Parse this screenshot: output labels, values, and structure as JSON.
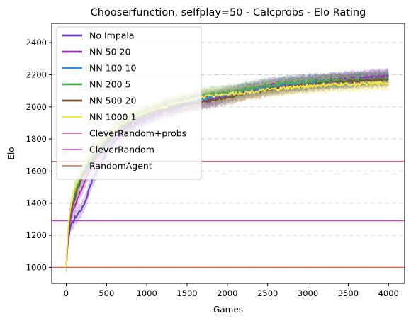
{
  "chart_data": {
    "type": "line",
    "title": "Chooserfunction, selfplay=50 - Calcprobs - Elo Rating",
    "xlabel": "Games",
    "ylabel": "Elo",
    "xlim": [
      -180,
      4200
    ],
    "ylim": [
      900,
      2520
    ],
    "xticks": [
      0,
      500,
      1000,
      1500,
      2000,
      2500,
      3000,
      3500,
      4000
    ],
    "yticks": [
      1000,
      1200,
      1400,
      1600,
      1800,
      2000,
      2200,
      2400
    ],
    "grid": "horizontal-dashed",
    "legend_position": "upper-left",
    "series": [
      {
        "name": "No Impala",
        "color": "#6a3fbf",
        "band": 45,
        "x": [
          0,
          20,
          50,
          100,
          150,
          200,
          250,
          300,
          400,
          500,
          600,
          700,
          800,
          1000,
          1200,
          1400,
          1600,
          1800,
          2000,
          2200,
          2400,
          2600,
          2800,
          3000,
          3200,
          3400,
          3600,
          3800,
          4000
        ],
        "y": [
          1000,
          1150,
          1250,
          1300,
          1340,
          1370,
          1430,
          1520,
          1620,
          1720,
          1790,
          1840,
          1880,
          1930,
          1970,
          2000,
          2030,
          2040,
          2070,
          2090,
          2110,
          2130,
          2140,
          2150,
          2160,
          2170,
          2175,
          2180,
          2185
        ]
      },
      {
        "name": "NN 50 20",
        "color": "#9b2fb5",
        "band": 45,
        "x": [
          0,
          20,
          50,
          100,
          150,
          200,
          250,
          300,
          400,
          500,
          600,
          700,
          800,
          1000,
          1200,
          1400,
          1600,
          1800,
          2000,
          2200,
          2400,
          2600,
          2800,
          3000,
          3200,
          3400,
          3600,
          3800,
          4000
        ],
        "y": [
          1000,
          1180,
          1300,
          1380,
          1440,
          1500,
          1560,
          1610,
          1700,
          1770,
          1820,
          1860,
          1900,
          1940,
          1980,
          2010,
          2040,
          2060,
          2080,
          2100,
          2120,
          2140,
          2150,
          2160,
          2165,
          2170,
          2180,
          2185,
          2190
        ]
      },
      {
        "name": "NN 100 10",
        "color": "#2b8fe0",
        "band": 40,
        "x": [
          0,
          20,
          50,
          100,
          150,
          200,
          250,
          300,
          400,
          500,
          600,
          700,
          800,
          1000,
          1200,
          1400,
          1600,
          1800,
          2000,
          2200,
          2400,
          2600,
          2800,
          3000,
          3200,
          3400,
          3600,
          3800,
          4000
        ],
        "y": [
          1000,
          1200,
          1340,
          1440,
          1520,
          1580,
          1620,
          1660,
          1730,
          1790,
          1840,
          1880,
          1910,
          1950,
          1990,
          2020,
          2040,
          2060,
          2080,
          2100,
          2110,
          2130,
          2140,
          2150,
          2155,
          2160,
          2165,
          2170,
          2175
        ]
      },
      {
        "name": "NN 200 5",
        "color": "#4caf50",
        "band": 45,
        "x": [
          0,
          20,
          50,
          100,
          150,
          200,
          250,
          300,
          400,
          500,
          600,
          700,
          800,
          1000,
          1200,
          1400,
          1600,
          1800,
          2000,
          2200,
          2400,
          2600,
          2800,
          3000,
          3200,
          3400,
          3600,
          3800,
          4000
        ],
        "y": [
          1000,
          1210,
          1360,
          1470,
          1540,
          1600,
          1640,
          1680,
          1740,
          1800,
          1850,
          1890,
          1920,
          1960,
          2000,
          2030,
          2060,
          2080,
          2090,
          2110,
          2120,
          2140,
          2150,
          2160,
          2160,
          2165,
          2170,
          2175,
          2180
        ]
      },
      {
        "name": "NN 500 20",
        "color": "#7b5230",
        "band": 45,
        "x": [
          0,
          20,
          50,
          100,
          150,
          200,
          250,
          300,
          400,
          500,
          600,
          700,
          800,
          1000,
          1200,
          1400,
          1600,
          1800,
          2000,
          2200,
          2400,
          2600,
          2800,
          3000,
          3200,
          3400,
          3600,
          3800,
          4000
        ],
        "y": [
          1000,
          1190,
          1330,
          1420,
          1500,
          1560,
          1610,
          1650,
          1720,
          1780,
          1830,
          1870,
          1900,
          1950,
          1985,
          2010,
          2020,
          2040,
          2060,
          2080,
          2100,
          2120,
          2130,
          2140,
          2150,
          2155,
          2160,
          2165,
          2170
        ]
      },
      {
        "name": "NN 1000 1",
        "color": "#f5e64a",
        "band": 45,
        "x": [
          0,
          20,
          50,
          100,
          150,
          200,
          250,
          300,
          400,
          500,
          600,
          700,
          800,
          1000,
          1200,
          1400,
          1600,
          1800,
          2000,
          2200,
          2400,
          2600,
          2800,
          3000,
          3200,
          3400,
          3600,
          3800,
          4000
        ],
        "y": [
          1000,
          1220,
          1370,
          1480,
          1550,
          1610,
          1660,
          1700,
          1760,
          1810,
          1860,
          1900,
          1930,
          1970,
          2000,
          2030,
          2050,
          2070,
          2080,
          2090,
          2100,
          2110,
          2120,
          2130,
          2135,
          2140,
          2140,
          2145,
          2150
        ]
      }
    ],
    "reference_lines": [
      {
        "name": "CleverRandom+probs",
        "color": "#d6245a",
        "y": 1660
      },
      {
        "name": "CleverRandom",
        "color": "#c21fd1",
        "y": 1290
      },
      {
        "name": "RandomAgent",
        "color": "#e2492f",
        "y": 1000
      }
    ]
  }
}
